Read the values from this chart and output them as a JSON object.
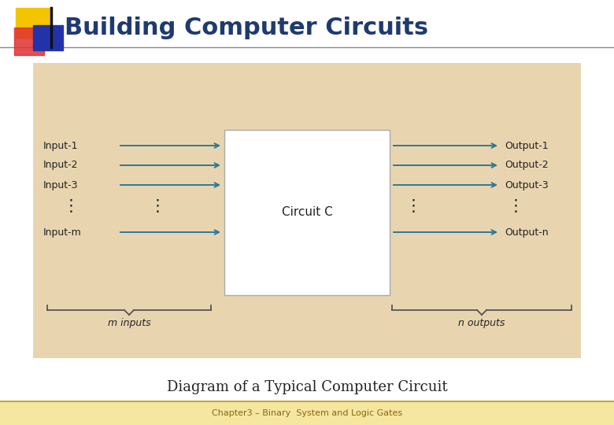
{
  "title": "Building Computer Circuits",
  "subtitle": "Diagram of a Typical Computer Circuit",
  "footer": "Chapter3 – Binary  System and Logic Gates",
  "bg_color": "#ffffff",
  "diagram_bg": "#e8d5b0",
  "box_bg": "#ffffff",
  "title_color": "#1f3a6e",
  "arrow_color": "#2a7a9b",
  "text_color": "#222222",
  "footer_bg": "#f5e6a0",
  "footer_line_color": "#c8a830",
  "footer_text_color": "#8b6810",
  "inputs": [
    "Input-1",
    "Input-2",
    "Input-3",
    "Input-m"
  ],
  "outputs": [
    "Output-1",
    "Output-2",
    "Output-3",
    "Output-n"
  ],
  "circuit_label": "Circuit C",
  "m_inputs_label": "m inputs",
  "n_outputs_label": "n outputs",
  "sq_yellow": "#f5c400",
  "sq_red": "#e03030",
  "sq_blue": "#2233aa",
  "title_fontsize": 22,
  "body_fontsize": 9,
  "subtitle_fontsize": 13,
  "footer_fontsize": 8
}
